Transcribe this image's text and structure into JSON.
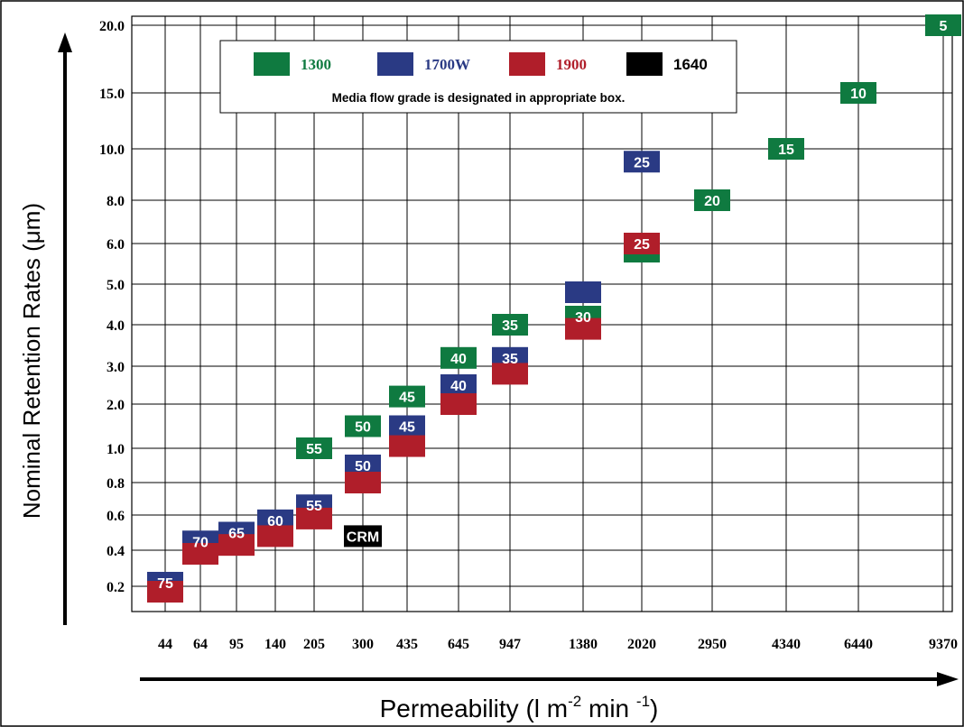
{
  "chart_data": {
    "type": "scatter",
    "title": "",
    "xlabel": "Permeability (l m-2 min -1)",
    "xlabel_parts": {
      "base": "Permeability (l m",
      "sup1": "-2",
      "mid": " min ",
      "sup2": "-1",
      "end": ")"
    },
    "ylabel": "Nominal Retention Rates (μm)",
    "x_ticks": [
      "44",
      "64",
      "95",
      "140",
      "205",
      "300",
      "435",
      "645",
      "947",
      "1380",
      "2020",
      "2950",
      "4340",
      "6440",
      "9370"
    ],
    "y_ticks": [
      "0.2",
      "0.4",
      "0.6",
      "0.8",
      "1.0",
      "2.0",
      "3.0",
      "4.0",
      "5.0",
      "6.0",
      "8.0",
      "10.0",
      "15.0",
      "20.0"
    ],
    "grid": true,
    "legend": {
      "placement": "top",
      "entries": [
        {
          "name": "1300",
          "color": "#0f7a40",
          "text_color": "#0f7a40",
          "font": "serif"
        },
        {
          "name": "1700W",
          "color": "#2a3a84",
          "text_color": "#2a3a84",
          "font": "serif"
        },
        {
          "name": "1900",
          "color": "#b01e2a",
          "text_color": "#b01e2a",
          "font": "serif"
        },
        {
          "name": "1640",
          "color": "#000000",
          "text_color": "#000000",
          "font": "sans"
        }
      ],
      "note": "Media flow grade is designated in appropriate box."
    },
    "colors": {
      "1300": "#0f7a40",
      "1700W": "#2a3a84",
      "1900": "#b01e2a",
      "1640": "#000000"
    },
    "series": [
      {
        "name": "1300",
        "points": [
          {
            "x": "205",
            "y": 1.0,
            "label": "55"
          },
          {
            "x": "300",
            "y": 1.5,
            "label": "50"
          },
          {
            "x": "435",
            "y": 2.2,
            "label": "45"
          },
          {
            "x": "645",
            "y": 3.2,
            "label": "40"
          },
          {
            "x": "947",
            "y": 4.0,
            "label": "35"
          },
          {
            "x": "1380",
            "y": 4.2,
            "label": "30"
          },
          {
            "x": "2020",
            "y": 5.8,
            "label": ""
          },
          {
            "x": "2950",
            "y": 8.0,
            "label": "20"
          },
          {
            "x": "4340",
            "y": 10.0,
            "label": "15"
          },
          {
            "x": "6440",
            "y": 15.0,
            "label": "10"
          },
          {
            "x": "9370",
            "y": 20.0,
            "label": "5"
          }
        ]
      },
      {
        "name": "1700W",
        "points": [
          {
            "x": "44",
            "y": 0.22,
            "label": "75"
          },
          {
            "x": "64",
            "y": 0.45,
            "label": "70"
          },
          {
            "x": "95",
            "y": 0.5,
            "label": "65"
          },
          {
            "x": "140",
            "y": 0.57,
            "label": "60"
          },
          {
            "x": "205",
            "y": 0.66,
            "label": "55"
          },
          {
            "x": "300",
            "y": 0.9,
            "label": "50"
          },
          {
            "x": "435",
            "y": 1.5,
            "label": "45"
          },
          {
            "x": "645",
            "y": 2.5,
            "label": "40"
          },
          {
            "x": "947",
            "y": 3.2,
            "label": "35"
          },
          {
            "x": "1380",
            "y": 4.8,
            "label": ""
          },
          {
            "x": "2020",
            "y": 9.5,
            "label": "25"
          }
        ]
      },
      {
        "name": "1900",
        "points": [
          {
            "x": "44",
            "y": 0.17,
            "label": ""
          },
          {
            "x": "64",
            "y": 0.38,
            "label": ""
          },
          {
            "x": "95",
            "y": 0.43,
            "label": ""
          },
          {
            "x": "140",
            "y": 0.48,
            "label": ""
          },
          {
            "x": "205",
            "y": 0.58,
            "label": ""
          },
          {
            "x": "300",
            "y": 0.8,
            "label": ""
          },
          {
            "x": "435",
            "y": 1.05,
            "label": ""
          },
          {
            "x": "645",
            "y": 2.0,
            "label": ""
          },
          {
            "x": "947",
            "y": 2.8,
            "label": ""
          },
          {
            "x": "1380",
            "y": 3.9,
            "label": ""
          },
          {
            "x": "2020",
            "y": 6.0,
            "label": "25"
          }
        ]
      },
      {
        "name": "1640",
        "points": [
          {
            "x": "300",
            "y": 0.48,
            "label": "CRM"
          }
        ]
      }
    ]
  }
}
